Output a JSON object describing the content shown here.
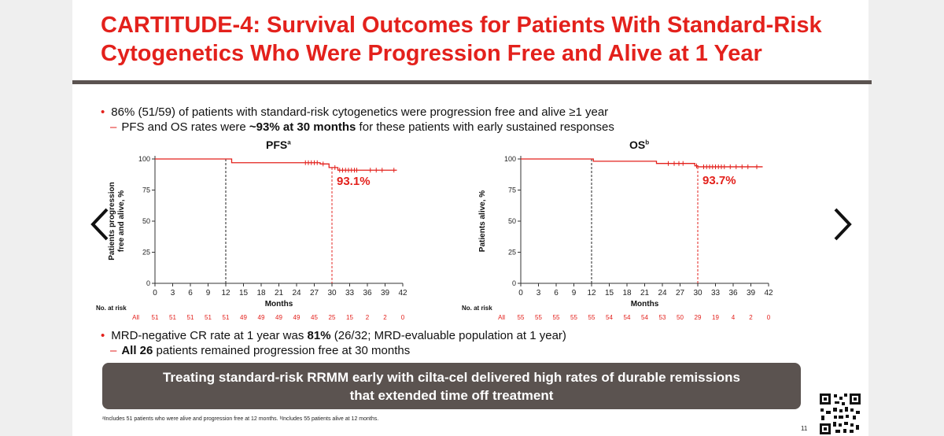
{
  "title": {
    "line1": "CARTITUDE-4: Survival Outcomes for Patients With Standard-Risk",
    "line2": "Cytogenetics Who Were Progression Free and Alive at 1 Year"
  },
  "bullets": {
    "b1": "86% (51/59) of patients with standard-risk cytogenetics were progression free and alive ≥1 year",
    "b1_sub_prefix": "PFS and OS rates were ",
    "b1_sub_bold": "~93% at 30 months",
    "b1_sub_suffix": " for these patients with early sustained responses",
    "b2_prefix": "MRD-negative CR rate at 1 year was ",
    "b2_bold": "81%",
    "b2_suffix": " (26/32; MRD-evaluable population at 1 year)",
    "b2_sub_bold": "All 26",
    "b2_sub_suffix": " patients remained progression free at 30 months"
  },
  "callout": "Treating standard-risk RRMM early with cilta-cel delivered high rates of durable remissions that extended time off treatment",
  "footnote": "ᵃIncludes 51 patients who were alive and progression free at 12 months. ᵇIncludes 55 patients alive at 12 months.",
  "page_number": "11",
  "colors": {
    "accent": "#e3211c",
    "callout_bg": "#5b5350",
    "curve": "#e3211c"
  },
  "icons": {
    "prev": "chevron-left-icon",
    "next": "chevron-right-icon",
    "qr": "qr-code-icon"
  },
  "chart_data": [
    {
      "type": "line",
      "title": "PFS",
      "title_sup": "a",
      "xlabel": "Months",
      "ylabel": "Patients progression free and alive, %",
      "xlim": [
        0,
        42
      ],
      "ylim": [
        0,
        100
      ],
      "xticks": [
        0,
        3,
        6,
        9,
        12,
        15,
        18,
        21,
        24,
        27,
        30,
        33,
        36,
        39,
        42
      ],
      "yticks": [
        0,
        25,
        50,
        75,
        100
      ],
      "step_points": [
        [
          0,
          100
        ],
        [
          12,
          100
        ],
        [
          13,
          97
        ],
        [
          25,
          97
        ],
        [
          28,
          96
        ],
        [
          29.5,
          93.1
        ],
        [
          30,
          93.1
        ],
        [
          31,
          91
        ],
        [
          41,
          91
        ]
      ],
      "censor_marks": [
        [
          25.5,
          97
        ],
        [
          26,
          97
        ],
        [
          26.5,
          97
        ],
        [
          27,
          97
        ],
        [
          27.5,
          97
        ],
        [
          28.5,
          96
        ],
        [
          30.5,
          93.1
        ],
        [
          31.3,
          91
        ],
        [
          31.8,
          91
        ],
        [
          32.3,
          91
        ],
        [
          32.8,
          91
        ],
        [
          33.3,
          91
        ],
        [
          33.8,
          91
        ],
        [
          34.2,
          91
        ],
        [
          36.5,
          91
        ],
        [
          37.5,
          91
        ],
        [
          38.5,
          91
        ],
        [
          40.5,
          91
        ]
      ],
      "reference_lines_x": [
        12,
        30
      ],
      "annotation": {
        "text": "93.1%",
        "x": 30,
        "y": 93.1
      },
      "at_risk_label": "No. at risk",
      "at_risk_group": "All",
      "at_risk_values": [
        51,
        51,
        51,
        51,
        51,
        49,
        49,
        49,
        49,
        45,
        25,
        15,
        2,
        2,
        0
      ]
    },
    {
      "type": "line",
      "title": "OS",
      "title_sup": "b",
      "xlabel": "Months",
      "ylabel": "Patients alive, %",
      "xlim": [
        0,
        42
      ],
      "ylim": [
        0,
        100
      ],
      "xticks": [
        0,
        3,
        6,
        9,
        12,
        15,
        18,
        21,
        24,
        27,
        30,
        33,
        36,
        39,
        42
      ],
      "yticks": [
        0,
        25,
        50,
        75,
        100
      ],
      "step_points": [
        [
          0,
          100
        ],
        [
          12,
          100
        ],
        [
          12.3,
          98.2
        ],
        [
          22.5,
          98.2
        ],
        [
          23,
          96.4
        ],
        [
          29,
          96.4
        ],
        [
          29.5,
          94.5
        ],
        [
          30,
          93.7
        ],
        [
          41,
          93.7
        ]
      ],
      "censor_marks": [
        [
          25,
          96.4
        ],
        [
          26,
          96.4
        ],
        [
          26.8,
          96.4
        ],
        [
          27.5,
          96.4
        ],
        [
          29.8,
          94.5
        ],
        [
          31,
          93.7
        ],
        [
          31.5,
          93.7
        ],
        [
          32,
          93.7
        ],
        [
          32.5,
          93.7
        ],
        [
          33,
          93.7
        ],
        [
          33.5,
          93.7
        ],
        [
          34,
          93.7
        ],
        [
          34.5,
          93.7
        ],
        [
          35.5,
          93.7
        ],
        [
          36.5,
          93.7
        ],
        [
          37.5,
          93.7
        ],
        [
          38.5,
          93.7
        ],
        [
          40,
          93.7
        ]
      ],
      "reference_lines_x": [
        12,
        30
      ],
      "annotation": {
        "text": "93.7%",
        "x": 30,
        "y": 93.7
      },
      "at_risk_label": "No. at risk",
      "at_risk_group": "All",
      "at_risk_values": [
        55,
        55,
        55,
        55,
        55,
        54,
        54,
        54,
        53,
        50,
        29,
        19,
        4,
        2,
        0
      ]
    }
  ]
}
